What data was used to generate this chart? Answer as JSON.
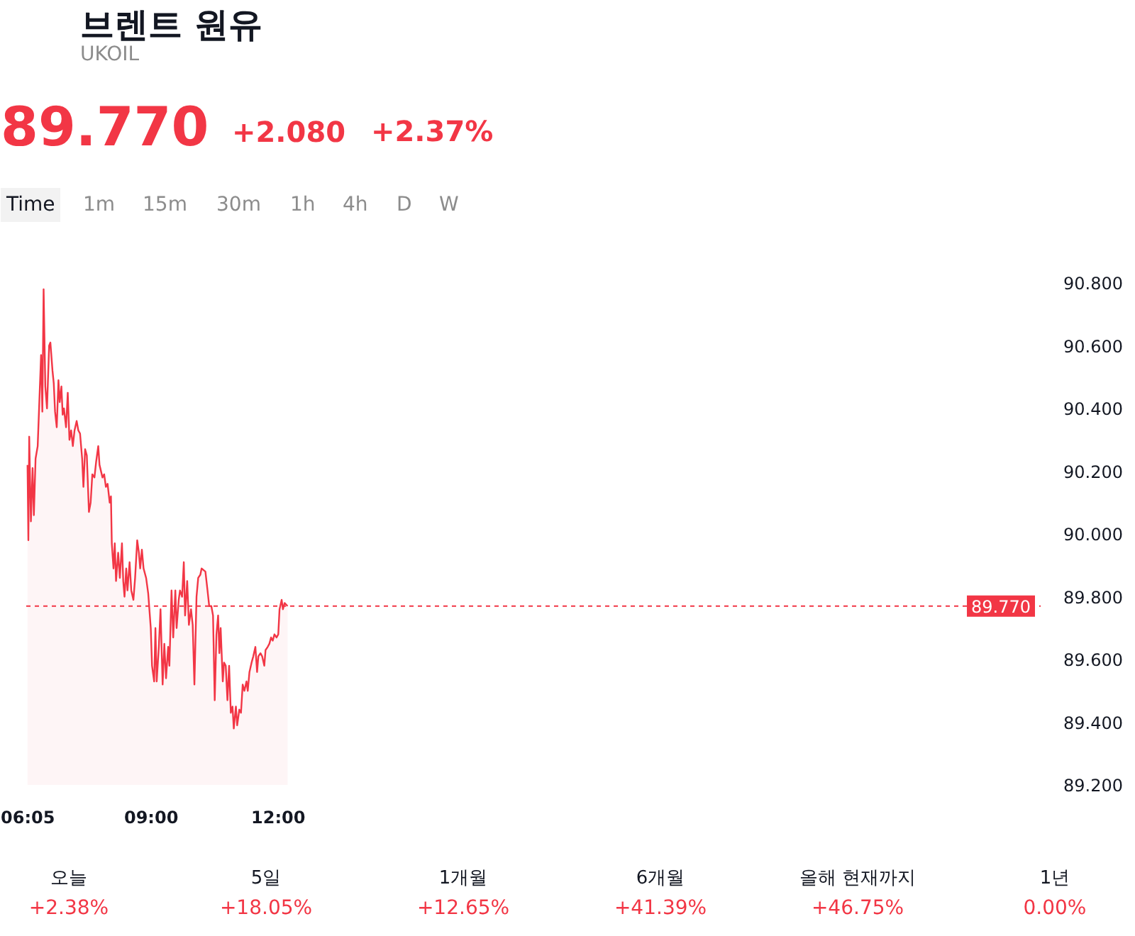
{
  "chart_data": {
    "type": "area",
    "title": "브렌트 원유",
    "subtitle": "UKOIL",
    "annotations": [
      "89.770",
      "+2.080",
      "+2.37%",
      "Time",
      "1m",
      "15m",
      "30m",
      "1h",
      "4h",
      "D",
      "W",
      "오늘",
      "+2.38%",
      "5일",
      "+18.05%",
      "1개월",
      "+12.65%",
      "6개월",
      "+41.39%",
      "올해 현재까지",
      "+46.75%",
      "1년",
      "0.00%"
    ],
    "x": [
      6.08,
      6.1,
      6.12,
      6.16,
      6.2,
      6.23,
      6.27,
      6.32,
      6.4,
      6.43,
      6.46,
      6.5,
      6.54,
      6.59,
      6.62,
      6.67,
      6.7,
      6.73,
      6.77,
      6.81,
      6.84,
      6.88,
      6.91,
      6.94,
      6.99,
      7.03,
      7.07,
      7.11,
      7.15,
      7.19,
      7.24,
      7.28,
      7.32,
      7.37,
      7.4,
      7.44,
      7.48,
      7.53,
      7.57,
      7.61,
      7.66,
      7.7,
      7.75,
      7.78,
      7.85,
      7.89,
      7.93,
      7.97,
      8.02,
      8.05,
      8.07,
      8.11,
      8.14,
      8.17,
      8.22,
      8.26,
      8.31,
      8.34,
      8.37,
      8.41,
      8.44,
      8.49,
      8.53,
      8.58,
      8.62,
      8.67,
      8.71,
      8.74,
      8.78,
      8.82,
      8.88,
      8.93,
      8.99,
      9.02,
      9.07,
      9.1,
      9.13,
      9.18,
      9.22,
      9.27,
      9.31,
      9.35,
      9.4,
      9.43,
      9.48,
      9.52,
      9.57,
      9.6,
      9.65,
      9.68,
      9.73,
      9.77,
      9.8,
      9.85,
      9.89,
      9.94,
      9.98,
      10.02,
      10.07,
      10.11,
      10.16,
      10.19,
      10.28,
      10.33,
      10.37,
      10.42,
      10.46,
      10.5,
      10.54,
      10.58,
      10.61,
      10.64,
      10.69,
      10.72,
      10.76,
      10.8,
      10.84,
      10.88,
      10.92,
      10.95,
      11.0,
      11.03,
      11.08,
      11.12,
      11.16,
      11.2,
      11.25,
      11.28,
      11.32,
      11.37,
      11.41,
      11.46,
      11.5,
      11.53,
      11.58,
      11.62,
      11.67,
      11.7,
      11.75,
      11.79,
      11.83,
      11.87,
      11.91,
      11.96,
      12.0,
      12.03,
      12.08,
      12.11,
      12.15,
      12.22
    ],
    "series": [
      {
        "color": "#f23645",
        "values": [
          90.22,
          89.98,
          90.31,
          90.04,
          90.21,
          90.06,
          90.24,
          90.28,
          90.57,
          90.39,
          90.78,
          90.47,
          90.4,
          90.6,
          90.61,
          90.52,
          90.48,
          90.39,
          90.34,
          90.49,
          90.42,
          90.47,
          90.38,
          90.4,
          90.34,
          90.45,
          90.3,
          90.33,
          90.28,
          90.33,
          90.36,
          90.33,
          90.32,
          90.24,
          90.15,
          90.27,
          90.25,
          90.07,
          90.1,
          90.19,
          90.18,
          90.23,
          90.28,
          90.22,
          90.18,
          90.19,
          90.15,
          90.16,
          90.1,
          90.12,
          89.97,
          89.89,
          89.97,
          89.85,
          89.94,
          89.86,
          89.97,
          89.85,
          89.8,
          89.89,
          89.82,
          89.91,
          89.82,
          89.79,
          89.86,
          89.98,
          89.94,
          89.89,
          89.95,
          89.89,
          89.86,
          89.81,
          89.7,
          89.58,
          89.53,
          89.7,
          89.53,
          89.64,
          89.76,
          89.52,
          89.65,
          89.54,
          89.64,
          89.58,
          89.82,
          89.67,
          89.82,
          89.7,
          89.79,
          89.82,
          89.8,
          89.91,
          89.74,
          89.85,
          89.71,
          89.76,
          89.71,
          89.52,
          89.8,
          89.86,
          89.87,
          89.89,
          89.88,
          89.82,
          89.77,
          89.77,
          89.74,
          89.47,
          89.68,
          89.74,
          89.62,
          89.7,
          89.53,
          89.59,
          89.58,
          89.47,
          89.58,
          89.43,
          89.45,
          89.38,
          89.45,
          89.39,
          89.44,
          89.43,
          89.52,
          89.5,
          89.53,
          89.5,
          89.56,
          89.59,
          89.61,
          89.64,
          89.56,
          89.61,
          89.62,
          89.61,
          89.58,
          89.63,
          89.64,
          89.65,
          89.67,
          89.66,
          89.68,
          89.67,
          89.68,
          89.76,
          89.79,
          89.76,
          89.78,
          89.77
        ]
      }
    ],
    "xlim": [
      6.05,
      30.0
    ],
    "xticks": [
      {
        "value": 6.0833,
        "label": "06:05"
      },
      {
        "value": 9,
        "label": "09:00"
      },
      {
        "value": 12,
        "label": "12:00"
      }
    ],
    "ylim": [
      89.2,
      90.8
    ],
    "yticks": [
      {
        "value": 89.2,
        "label": "89.200"
      },
      {
        "value": 89.4,
        "label": "89.400"
      },
      {
        "value": 89.6,
        "label": "89.600"
      },
      {
        "value": 89.8,
        "label": "89.800"
      },
      {
        "value": 90.0,
        "label": "90.000"
      },
      {
        "value": 90.2,
        "label": "90.200"
      },
      {
        "value": 90.4,
        "label": "90.400"
      },
      {
        "value": 90.6,
        "label": "90.600"
      },
      {
        "value": 90.8,
        "label": "90.800"
      }
    ],
    "ref_lines": [
      {
        "axis": "y",
        "value": 89.77,
        "label": "89.770",
        "color": "#f23645",
        "line_style": "dashed"
      }
    ]
  }
}
